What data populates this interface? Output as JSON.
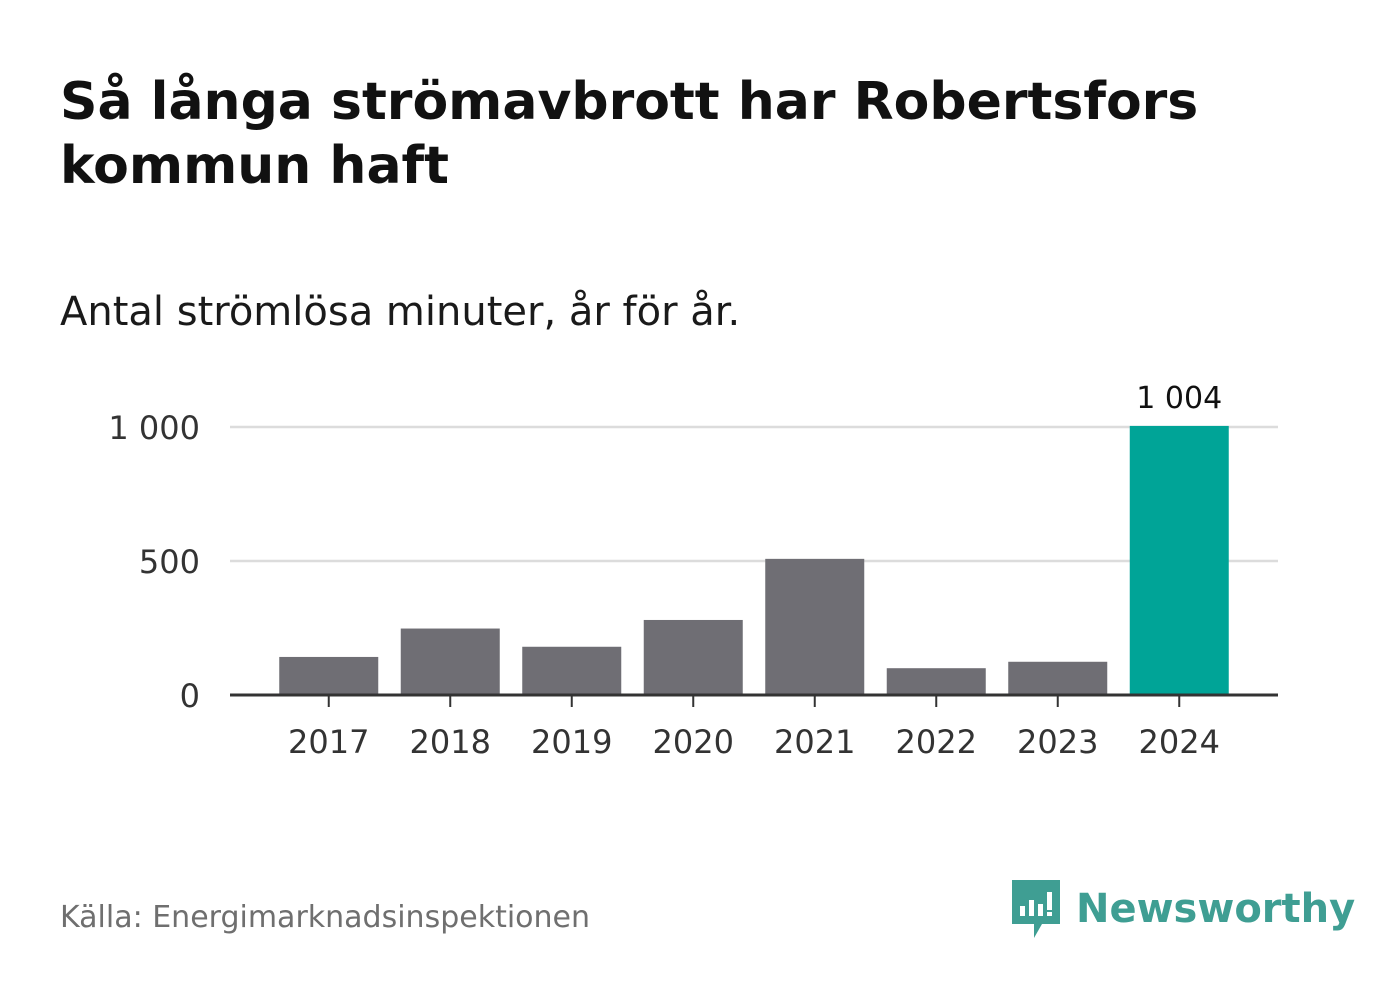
{
  "header": {
    "title": "Så långa strömavbrott har Robertsfors kommun haft",
    "subtitle": "Antal strömlösa minuter, år för år."
  },
  "footer": {
    "source": "Källa: Energimarknadsinspektionen",
    "brand": "Newsworthy"
  },
  "colors": {
    "bar_default": "#6f6e74",
    "bar_highlight": "#00a497",
    "gridline": "#dcdcdc",
    "axis": "#333333",
    "brand": "#3f9e93"
  },
  "icons": {
    "brand_logo": "newsworthy-logo-icon"
  },
  "chart_data": {
    "type": "bar",
    "title": "Så långa strömavbrott har Robertsfors kommun haft",
    "subtitle": "Antal strömlösa minuter, år för år.",
    "xlabel": "",
    "ylabel": "",
    "categories": [
      "2017",
      "2018",
      "2019",
      "2020",
      "2021",
      "2022",
      "2023",
      "2024"
    ],
    "values": [
      142,
      248,
      180,
      280,
      508,
      100,
      124,
      1004
    ],
    "highlight_index": 7,
    "data_labels": [
      {
        "index": 7,
        "text": "1 004"
      }
    ],
    "ylim": [
      0,
      1000
    ],
    "yticks": [
      {
        "value": 0,
        "label": "0"
      },
      {
        "value": 500,
        "label": "500"
      },
      {
        "value": 1000,
        "label": "1 000"
      }
    ],
    "grid": true,
    "legend": "none"
  }
}
